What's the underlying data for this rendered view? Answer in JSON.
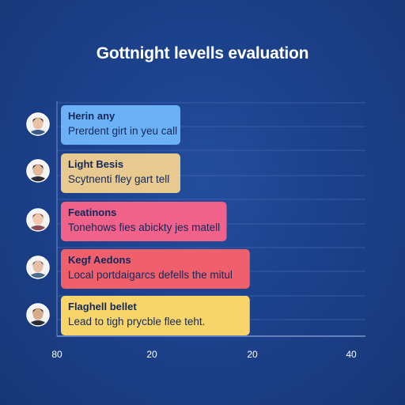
{
  "title": "Gottnight levells evaluation",
  "chart_data": {
    "type": "bar",
    "orientation": "horizontal",
    "title": "Gottnight levells evaluation",
    "xlim": [
      0,
      40
    ],
    "grid": true,
    "x_tick_labels": [
      "80",
      "20",
      "20",
      "40"
    ],
    "categories": [
      "Herin any",
      "Light Besis",
      "Featinons",
      "Kegf Aedons",
      "Flaghell bellet"
    ],
    "descriptions": [
      "Prerdent girt in yeu call",
      "Scytnenti fley gart tell",
      "Tonehows fies abickty jes matell",
      "Local portdaigarcs defells the mitul",
      "Lead to tigh prycble flee teht."
    ],
    "values": [
      16,
      16,
      22,
      25,
      25
    ],
    "colors": [
      "#6cb1f5",
      "#e8c98f",
      "#f0628a",
      "#f0606c",
      "#f7d56b"
    ],
    "avatars": [
      "avatar-1",
      "avatar-2",
      "avatar-3",
      "avatar-4",
      "avatar-5"
    ]
  }
}
